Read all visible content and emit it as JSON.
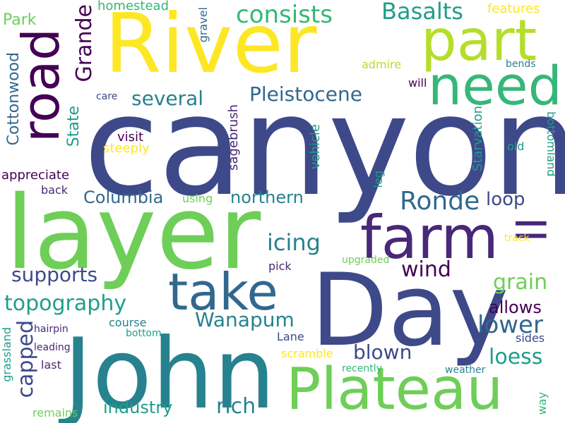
{
  "palette": {
    "background": "#ffffff",
    "yellow": "#fde725",
    "lime": "#b5de2b",
    "light_green": "#6ece58",
    "green": "#35b779",
    "teal_green": "#1f9e89",
    "teal": "#26828e",
    "steel_blue": "#31688e",
    "indigo_blue": "#3e4989",
    "dark_purple": "#482878",
    "deep_purple": "#440154"
  },
  "words": {
    "canyon": "canyon",
    "river": "River",
    "layer": "layer",
    "day": "Day",
    "john": "John",
    "plateau": "Plateau",
    "take": "take",
    "farm": "farm",
    "part": "part",
    "need": "need",
    "road": "road",
    "ii": "II",
    "consists": "consists",
    "basalts": "Basalts",
    "grande": "Grande",
    "park": "Park",
    "homestead": "homestead",
    "gravel": "gravel",
    "features": "features",
    "several": "several",
    "pleistocene": "Pleistocene",
    "cottonwood": "Cottonwood",
    "state": "State",
    "visit": "visit",
    "steeply": "steeply",
    "appreciate": "appreciate",
    "back": "back",
    "columbia": "Columbia",
    "using": "using",
    "sagebrush": "sagebrush",
    "northern": "northern",
    "vehicle": "vehicle",
    "leg": "leg",
    "starvation": "Starvation",
    "old": "old",
    "bottomland": "bottomland",
    "ronde": "Ronde",
    "loop": "loop",
    "admire": "admire",
    "bends": "bends",
    "will": "will",
    "care": "care",
    "track": "track",
    "icing": "icing",
    "wind": "wind",
    "pick": "pick",
    "upgraded": "upgraded",
    "supports": "supports",
    "grain": "grain",
    "allows": "allows",
    "topography": "topography",
    "wanapum": "Wanapum",
    "lower": "lower",
    "capped": "capped",
    "grassland": "grassland",
    "hairpin": "hairpin",
    "leading": "leading",
    "last": "last",
    "course": "course",
    "bottom": "bottom",
    "lane": "Lane",
    "blown": "blown",
    "scramble": "scramble",
    "recently": "recently",
    "loess": "loess",
    "sides": "sides",
    "weather": "weather",
    "way": "way",
    "remains": "remains",
    "industry": "industry",
    "rich": "rich"
  }
}
